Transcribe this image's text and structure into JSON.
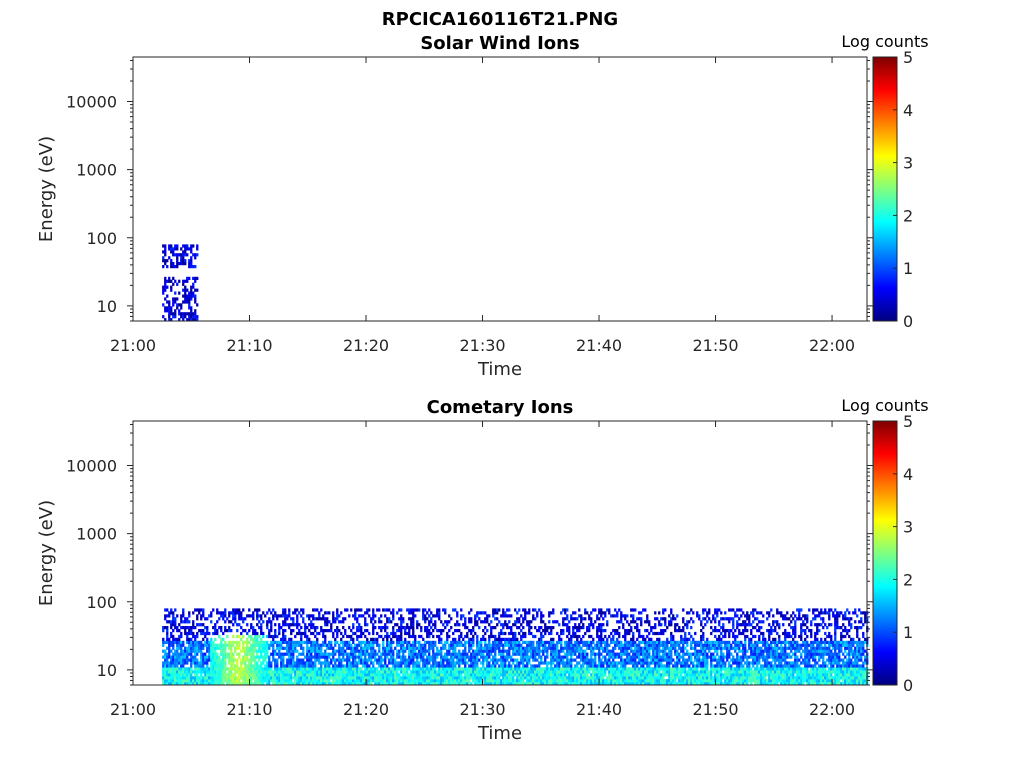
{
  "figure_title": "RPCICA160116T21.PNG",
  "chart_data": [
    {
      "type": "heatmap",
      "title": "Solar Wind Ions",
      "xlabel": "Time",
      "ylabel": "Energy (eV)",
      "x_ticks": [
        "21:00",
        "21:10",
        "21:20",
        "21:30",
        "21:40",
        "21:50",
        "22:00"
      ],
      "y_ticks": [
        "10",
        "100",
        "1000",
        "10000"
      ],
      "y_scale": "log",
      "ylim": [
        6,
        45000
      ],
      "xlim": [
        "21:00",
        "22:03"
      ],
      "colorbar": {
        "label": "Log counts",
        "ticks": [
          "0",
          "1",
          "2",
          "3",
          "4",
          "5"
        ],
        "range": [
          0,
          5
        ],
        "colormap": "jet"
      },
      "coverage": {
        "start": "21:02.5",
        "end": "21:05.5",
        "energy_max_eV": 80
      },
      "approx_level_log_counts": 0.4
    },
    {
      "type": "heatmap",
      "title": "Cometary Ions",
      "xlabel": "Time",
      "ylabel": "Energy (eV)",
      "x_ticks": [
        "21:00",
        "21:10",
        "21:20",
        "21:30",
        "21:40",
        "21:50",
        "22:00"
      ],
      "y_ticks": [
        "10",
        "100",
        "1000",
        "10000"
      ],
      "y_scale": "log",
      "ylim": [
        6,
        45000
      ],
      "xlim": [
        "21:00",
        "22:03"
      ],
      "colorbar": {
        "label": "Log counts",
        "ticks": [
          "0",
          "1",
          "2",
          "3",
          "4",
          "5"
        ],
        "range": [
          0,
          5
        ],
        "colormap": "jet"
      },
      "coverage": {
        "start": "21:02.5",
        "end": "22:03",
        "energy_max_eV": 80
      },
      "approx_level_log_counts": {
        "below_10eV": 1.9,
        "10_to_25eV": 1.2,
        "above_25eV": 0.5,
        "peak_near_21:09": 2.8
      }
    }
  ]
}
